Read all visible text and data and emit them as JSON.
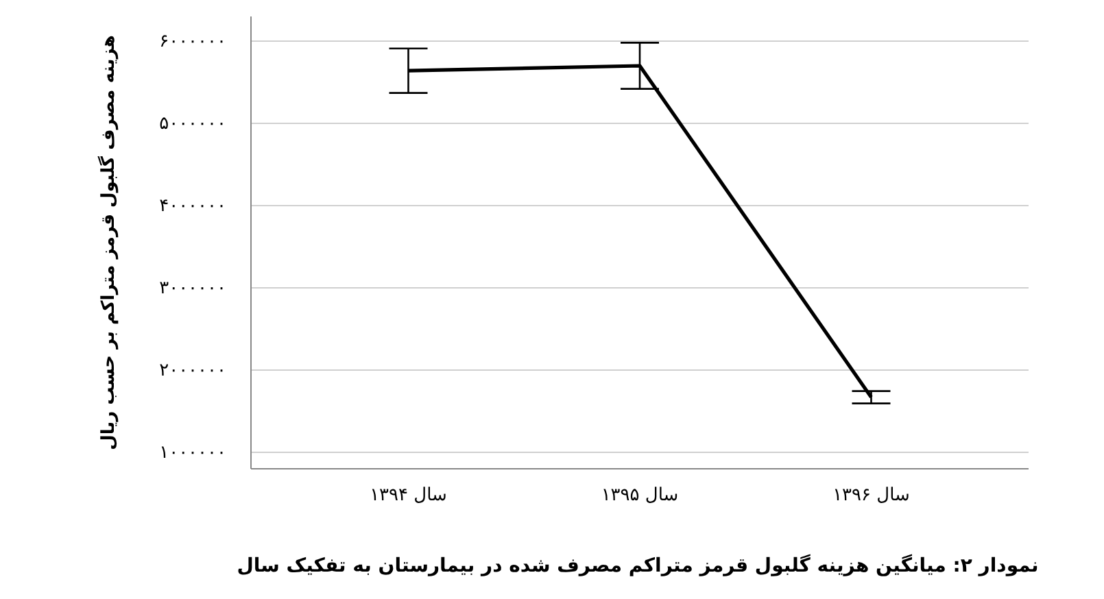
{
  "chart_data": {
    "type": "line",
    "title": "نمودار ۲: میانگین هزینه گلبول قرمز متراکم مصرف شده در بیمارستان به تفکیک سال",
    "ylabel": "هزینه مصرف گلبول قرمز متراکم بر حسب ریال",
    "categories": [
      "سال ۱۳۹۴",
      "سال ۱۳۹۵",
      "سال ۱۳۹۶"
    ],
    "series": [
      {
        "color": "#000000",
        "values": [
          5640000,
          5700000,
          1670000
        ],
        "errors": [
          270000,
          280000,
          75000
        ]
      }
    ],
    "ylim": [
      800000,
      6300000
    ],
    "yticks": [
      {
        "value": 6000000,
        "label": "۶۰۰۰۰۰۰"
      },
      {
        "value": 5000000,
        "label": "۵۰۰۰۰۰۰"
      },
      {
        "value": 4000000,
        "label": "۴۰۰۰۰۰۰"
      },
      {
        "value": 3000000,
        "label": "۳۰۰۰۰۰۰"
      },
      {
        "value": 2000000,
        "label": "۲۰۰۰۰۰۰"
      },
      {
        "value": 1000000,
        "label": "۱۰۰۰۰۰۰"
      }
    ],
    "grid": "y",
    "marker": "none",
    "line_style": "solid"
  }
}
